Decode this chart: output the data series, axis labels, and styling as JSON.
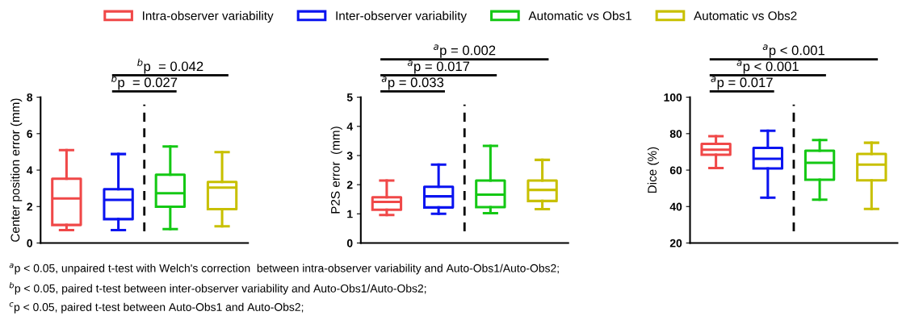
{
  "chart_data": [
    {
      "type": "box",
      "ylabel": "Center position error (mm)",
      "categories": [
        null,
        null,
        null,
        null
      ],
      "ylim": [
        0,
        8
      ],
      "yticks": [
        0,
        2,
        4,
        6,
        8
      ],
      "legend": "top",
      "series": [
        {
          "name": "Intra-observer variability",
          "color": "#f04848",
          "boxes": [
            {
              "low": 0.71,
              "q1": 0.99,
              "median": 2.44,
              "q3": 3.53,
              "high": 5.1
            },
            null,
            null,
            null
          ]
        },
        {
          "name": "Inter-observer variability",
          "color": "#0a14f0",
          "boxes": [
            null,
            {
              "low": 0.71,
              "q1": 1.31,
              "median": 2.37,
              "q3": 2.95,
              "high": 4.88
            },
            null,
            null
          ]
        },
        {
          "name": "Automatic vs Obs1",
          "color": "#14c814",
          "boxes": [
            null,
            null,
            {
              "low": 0.76,
              "q1": 1.99,
              "median": 2.73,
              "q3": 3.75,
              "high": 5.3
            },
            null
          ]
        },
        {
          "name": "Automatic vs Obs2",
          "color": "#c8c000",
          "boxes": [
            null,
            null,
            null,
            {
              "low": 0.92,
              "q1": 1.86,
              "median": 3.04,
              "q3": 3.35,
              "high": 4.99
            }
          ]
        }
      ],
      "annotations": [
        "$^{b}$p  = 0.027",
        "$^{b}$p  = 0.042",
        "$^{a}$p < 0.05, unpaired t-test with Welch's correction  between intra-observer variability and Auto-Obs1/Auto-Obs2;",
        "$^{b}$p < 0.05, paired t-test between inter-observer variability and Auto-Obs1/Auto-Obs2;",
        "$^{c}$p < 0.05, paired t-test between Auto-Obs1 and Auto-Obs2;"
      ]
    },
    {
      "type": "box",
      "ylabel": "P2S error  (mm)",
      "categories": [
        null,
        null,
        null,
        null
      ],
      "ylim": [
        0,
        5
      ],
      "yticks": [
        0,
        1,
        2,
        3,
        4,
        5
      ],
      "series": [
        {
          "color": "#f04848",
          "boxes": [
            {
              "low": 0.96,
              "q1": 1.14,
              "median": 1.41,
              "q3": 1.57,
              "high": 2.14
            },
            null,
            null,
            null
          ]
        },
        {
          "color": "#0a14f0",
          "boxes": [
            null,
            {
              "low": 1.0,
              "q1": 1.22,
              "median": 1.6,
              "q3": 1.93,
              "high": 2.69
            },
            null,
            null
          ]
        },
        {
          "color": "#14c814",
          "boxes": [
            null,
            null,
            {
              "low": 1.02,
              "q1": 1.23,
              "median": 1.66,
              "q3": 2.14,
              "high": 3.33
            },
            null
          ]
        },
        {
          "color": "#c8c000",
          "boxes": [
            null,
            null,
            null,
            {
              "low": 1.16,
              "q1": 1.44,
              "median": 1.82,
              "q3": 2.14,
              "high": 2.85
            }
          ]
        }
      ],
      "annotations": [
        "$^{a}$p = 0.033",
        "$^{a}$p = 0.017",
        "$^{a}$p = 0.002"
      ]
    },
    {
      "type": "box",
      "ylabel": "Dice (%)",
      "categories": [
        null,
        null,
        null,
        null
      ],
      "ylim": [
        20,
        100
      ],
      "yticks": [
        20,
        40,
        60,
        80,
        100
      ],
      "series": [
        {
          "color": "#f04848",
          "boxes": [
            {
              "low": 61.1,
              "q1": 68.4,
              "median": 71.2,
              "q3": 74.4,
              "high": 78.6
            },
            null,
            null,
            null
          ]
        },
        {
          "color": "#0a14f0",
          "boxes": [
            null,
            {
              "low": 44.9,
              "q1": 60.9,
              "median": 66.2,
              "q3": 72.2,
              "high": 81.6
            },
            null,
            null
          ]
        },
        {
          "color": "#14c814",
          "boxes": [
            null,
            null,
            {
              "low": 43.8,
              "q1": 54.7,
              "median": 64.0,
              "q3": 70.6,
              "high": 76.5
            },
            null
          ]
        },
        {
          "color": "#c8c000",
          "boxes": [
            null,
            null,
            null,
            {
              "low": 38.7,
              "q1": 54.4,
              "median": 63.0,
              "q3": 68.9,
              "high": 75.0
            }
          ]
        }
      ],
      "annotations": [
        "$^{a}$p = 0.017",
        "$^{a}$p < 0.001",
        "$^{a}$p < 0.001"
      ]
    }
  ]
}
